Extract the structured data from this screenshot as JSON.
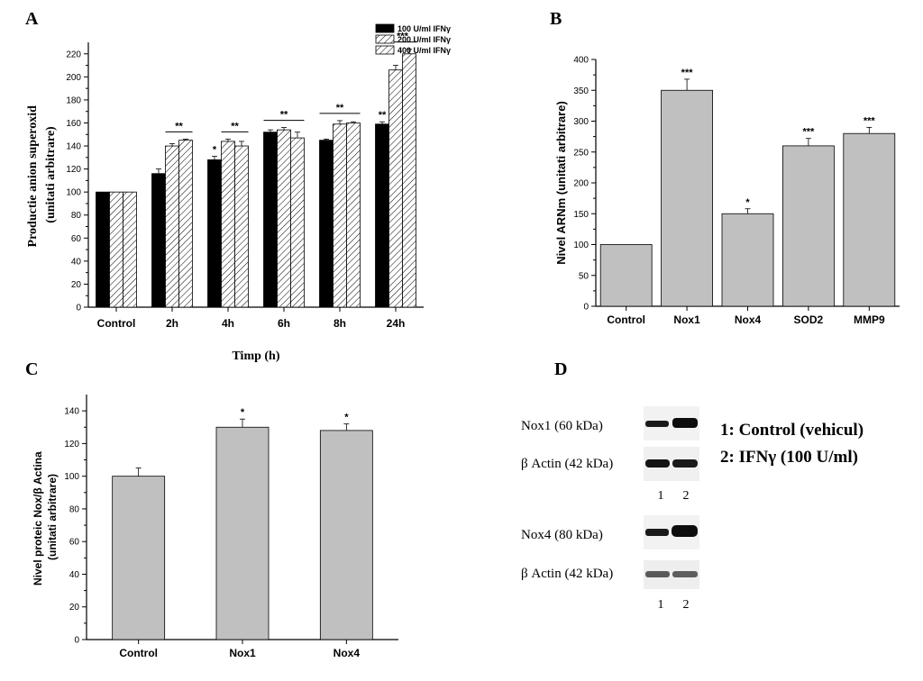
{
  "chart_data": [
    {
      "panel": "A",
      "type": "bar",
      "ylabel": "Productie anion superoxid (unitati arbitrare)",
      "ylabel_lines": [
        "Productie anion superoxid",
        "(unitati arbitrare)"
      ],
      "xlabel": "Timp (h)",
      "categories": [
        "Control",
        "2h",
        "4h",
        "6h",
        "8h",
        "24h"
      ],
      "ylim": [
        0,
        230
      ],
      "yticks": [
        0,
        20,
        40,
        60,
        80,
        100,
        120,
        140,
        160,
        180,
        200,
        220
      ],
      "legend_position": "top-right",
      "series": [
        {
          "name": "100 U/ml IFNγ",
          "fill": "#000000",
          "values": [
            100,
            116,
            128,
            152,
            145,
            159
          ],
          "errors": [
            0,
            4,
            3,
            2,
            1,
            2
          ]
        },
        {
          "name": "200 U/ml IFNγ",
          "fill": "hatch",
          "values": [
            100,
            140,
            144,
            154,
            159,
            206
          ],
          "errors": [
            0,
            2,
            2,
            2,
            3,
            4
          ]
        },
        {
          "name": "400 U/ml IFNγ",
          "fill": "hatch",
          "values": [
            100,
            145,
            140,
            147,
            160,
            220
          ],
          "errors": [
            0,
            1,
            4,
            5,
            1,
            4
          ]
        }
      ],
      "annotations": [
        {
          "text": "*",
          "category": 2,
          "series": 0
        },
        {
          "text": "**",
          "category": 5,
          "series": 0
        },
        {
          "text": "**",
          "category": 1,
          "bracket": [
            1,
            2
          ]
        },
        {
          "text": "**",
          "category": 2,
          "bracket": [
            1,
            2
          ]
        },
        {
          "text": "**",
          "category": 3,
          "bracket": [
            0,
            2
          ]
        },
        {
          "text": "**",
          "category": 4,
          "bracket": [
            0,
            2
          ]
        },
        {
          "text": "***",
          "category": 5,
          "bracket": [
            1,
            2
          ]
        }
      ]
    },
    {
      "panel": "B",
      "type": "bar",
      "ylabel": "Nivel ARNm (unitati arbitrare)",
      "categories": [
        "Control",
        "Nox1",
        "Nox4",
        "SOD2",
        "MMP9"
      ],
      "values": [
        100,
        350,
        150,
        260,
        280
      ],
      "errors": [
        0,
        18,
        8,
        12,
        10
      ],
      "significance": [
        "",
        "***",
        "*",
        "***",
        "***"
      ],
      "ylim": [
        0,
        400
      ],
      "yticks": [
        0,
        50,
        100,
        150,
        200,
        250,
        300,
        350,
        400
      ],
      "bar_color": "#c0c0c0"
    },
    {
      "panel": "C",
      "type": "bar",
      "ylabel": "Nivel proteic Nox/β Actina (unitati arbitrare)",
      "ylabel_lines": [
        "Nivel proteic Nox/β Actina",
        "(unitati arbitrare)"
      ],
      "categories": [
        "Control",
        "Nox1",
        "Nox4"
      ],
      "values": [
        100,
        130,
        128
      ],
      "errors": [
        5,
        5,
        4
      ],
      "significance": [
        "",
        "*",
        "*"
      ],
      "ylim": [
        0,
        150
      ],
      "yticks": [
        0,
        20,
        40,
        60,
        80,
        100,
        120,
        140
      ],
      "bar_color": "#c0c0c0"
    }
  ],
  "panel_d": {
    "letter": "D",
    "blots": [
      {
        "label": "Nox1 (60 kDa)"
      },
      {
        "label": "β Actin (42 kDa)"
      },
      {
        "label": "Nox4 (80 kDa)"
      },
      {
        "label": "β Actin (42 kDa)"
      }
    ],
    "lanes": [
      "1",
      "2"
    ],
    "legend": [
      "1: Control (vehicul)",
      "2: IFNγ (100 U/ml)"
    ]
  }
}
